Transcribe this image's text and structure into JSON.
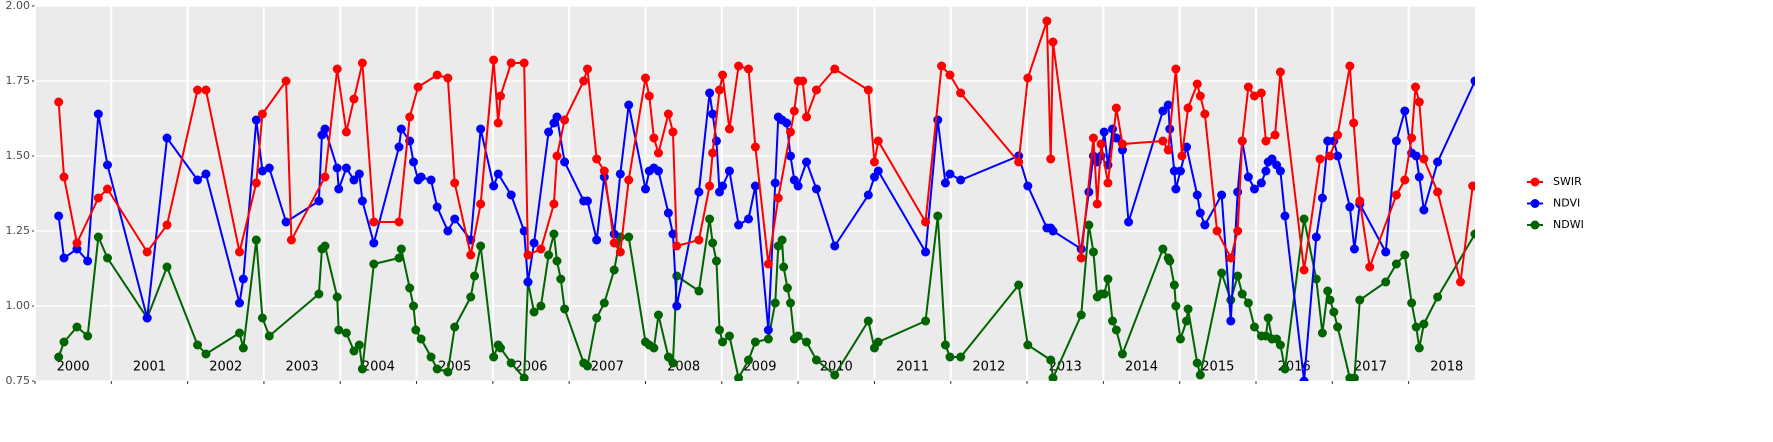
{
  "chart_data": {
    "type": "line",
    "legend": "right",
    "grid": true,
    "xlim": [
      2000,
      2018.87
    ],
    "ylim": [
      0.75,
      2.0
    ],
    "xticks": [
      2000,
      2001,
      2002,
      2003,
      2004,
      2005,
      2006,
      2007,
      2008,
      2009,
      2010,
      2011,
      2012,
      2013,
      2014,
      2015,
      2016,
      2017,
      2018
    ],
    "yticks": [
      {
        "value": 0.75,
        "label": "0.75"
      },
      {
        "value": 1.0,
        "label": "1.00"
      },
      {
        "value": 1.25,
        "label": "1.25"
      },
      {
        "value": 1.5,
        "label": "1.50"
      },
      1.75,
      {
        "value": 2.0,
        "label": "2.00"
      }
    ],
    "series": [
      {
        "name": "SWIR",
        "color": "#ff0000",
        "x": [
          2000.31,
          2000.38,
          2000.55,
          2000.83,
          2000.95,
          2001.47,
          2001.73,
          2002.13,
          2002.24,
          2002.68,
          2002.9,
          2002.98,
          2003.29,
          2003.36,
          2003.8,
          2003.96,
          2004.08,
          2004.18,
          2004.29,
          2004.44,
          2004.77,
          2004.91,
          2005.02,
          2005.27,
          2005.41,
          2005.5,
          2005.71,
          2005.84,
          2006.01,
          2006.07,
          2006.1,
          2006.24,
          2006.41,
          2006.46,
          2006.63,
          2006.8,
          2006.84,
          2006.94,
          2007.19,
          2007.24,
          2007.36,
          2007.46,
          2007.59,
          2007.67,
          2007.78,
          2008.0,
          2008.05,
          2008.11,
          2008.17,
          2008.3,
          2008.36,
          2008.41,
          2008.7,
          2008.84,
          2008.88,
          2008.97,
          2009.01,
          2009.1,
          2009.22,
          2009.35,
          2009.44,
          2009.61,
          2009.74,
          2009.9,
          2009.95,
          2010.0,
          2010.06,
          2010.11,
          2010.24,
          2010.48,
          2010.92,
          2011.0,
          2011.05,
          2011.67,
          2011.88,
          2011.99,
          2012.13,
          2012.89,
          2013.01,
          2013.26,
          2013.31,
          2013.34,
          2013.71,
          2013.87,
          2013.92,
          2013.97,
          2014.06,
          2014.17,
          2014.25,
          2014.78,
          2014.85,
          2014.95,
          2015.03,
          2015.11,
          2015.23,
          2015.27,
          2015.33,
          2015.49,
          2015.67,
          2015.76,
          2015.82,
          2015.9,
          2015.98,
          2016.07,
          2016.13,
          2016.25,
          2016.32,
          2016.63,
          2016.84,
          2016.97,
          2017.07,
          2017.23,
          2017.28,
          2017.36,
          2017.49,
          2017.84,
          2017.95,
          2018.04,
          2018.09,
          2018.14,
          2018.2,
          2018.38,
          2018.68,
          2018.84
        ],
        "values": [
          1.68,
          1.43,
          1.21,
          1.36,
          1.39,
          1.18,
          1.27,
          1.72,
          1.72,
          1.18,
          1.41,
          1.64,
          1.75,
          1.22,
          1.43,
          1.79,
          1.58,
          1.69,
          1.81,
          1.28,
          1.28,
          1.63,
          1.73,
          1.77,
          1.76,
          1.41,
          1.17,
          1.34,
          1.82,
          1.61,
          1.7,
          1.81,
          1.81,
          1.17,
          1.19,
          1.34,
          1.5,
          1.62,
          1.75,
          1.79,
          1.49,
          1.45,
          1.21,
          1.18,
          1.42,
          1.76,
          1.7,
          1.56,
          1.51,
          1.64,
          1.58,
          1.2,
          1.22,
          1.4,
          1.51,
          1.72,
          1.77,
          1.59,
          1.8,
          1.79,
          1.53,
          1.14,
          1.36,
          1.58,
          1.65,
          1.75,
          1.75,
          1.63,
          1.72,
          1.79,
          1.72,
          1.48,
          1.55,
          1.28,
          1.8,
          1.77,
          1.71,
          1.48,
          1.76,
          1.95,
          1.49,
          1.88,
          1.16,
          1.56,
          1.34,
          1.54,
          1.41,
          1.66,
          1.54,
          1.55,
          1.52,
          1.79,
          1.5,
          1.66,
          1.74,
          1.7,
          1.64,
          1.25,
          1.16,
          1.25,
          1.55,
          1.73,
          1.7,
          1.71,
          1.55,
          1.57,
          1.78,
          1.12,
          1.49,
          1.5,
          1.57,
          1.8,
          1.61,
          1.35,
          1.13,
          1.37,
          1.42,
          1.56,
          1.73,
          1.68,
          1.49,
          1.38,
          1.08,
          1.4
        ]
      },
      {
        "name": "NDVI",
        "color": "#0000ff",
        "x": [
          2000.31,
          2000.38,
          2000.55,
          2000.69,
          2000.83,
          2000.95,
          2001.47,
          2001.73,
          2002.13,
          2002.24,
          2002.68,
          2002.73,
          2002.9,
          2002.98,
          2003.07,
          2003.29,
          2003.72,
          2003.76,
          2003.8,
          2003.96,
          2003.98,
          2004.08,
          2004.18,
          2004.25,
          2004.29,
          2004.44,
          2004.77,
          2004.8,
          2004.91,
          2004.96,
          2005.02,
          2005.06,
          2005.19,
          2005.27,
          2005.41,
          2005.5,
          2005.71,
          2005.84,
          2006.01,
          2006.07,
          2006.24,
          2006.41,
          2006.46,
          2006.54,
          2006.73,
          2006.8,
          2006.84,
          2006.94,
          2007.19,
          2007.24,
          2007.36,
          2007.46,
          2007.59,
          2007.67,
          2007.78,
          2008.0,
          2008.05,
          2008.11,
          2008.17,
          2008.3,
          2008.36,
          2008.41,
          2008.7,
          2008.84,
          2008.88,
          2008.93,
          2008.97,
          2009.01,
          2009.1,
          2009.22,
          2009.35,
          2009.44,
          2009.61,
          2009.7,
          2009.74,
          2009.79,
          2009.85,
          2009.9,
          2009.95,
          2010.0,
          2010.11,
          2010.24,
          2010.48,
          2010.92,
          2011.0,
          2011.05,
          2011.67,
          2011.83,
          2011.93,
          2011.99,
          2012.13,
          2012.89,
          2013.01,
          2013.26,
          2013.31,
          2013.34,
          2013.71,
          2013.81,
          2013.87,
          2013.92,
          2013.97,
          2014.01,
          2014.06,
          2014.12,
          2014.17,
          2014.25,
          2014.33,
          2014.78,
          2014.85,
          2014.87,
          2014.93,
          2014.95,
          2015.01,
          2015.09,
          2015.23,
          2015.27,
          2015.33,
          2015.55,
          2015.67,
          2015.76,
          2015.82,
          2015.9,
          2015.98,
          2016.07,
          2016.13,
          2016.16,
          2016.21,
          2016.27,
          2016.32,
          2016.38,
          2016.63,
          2016.79,
          2016.87,
          2016.94,
          2017.02,
          2017.07,
          2017.23,
          2017.29,
          2017.36,
          2017.7,
          2017.84,
          2017.95,
          2018.04,
          2018.1,
          2018.14,
          2018.2,
          2018.38,
          2018.87
        ],
        "values": [
          1.3,
          1.16,
          1.19,
          1.15,
          1.64,
          1.47,
          0.96,
          1.56,
          1.42,
          1.44,
          1.01,
          1.09,
          1.62,
          1.45,
          1.46,
          1.28,
          1.35,
          1.57,
          1.59,
          1.46,
          1.39,
          1.46,
          1.42,
          1.44,
          1.35,
          1.21,
          1.53,
          1.59,
          1.55,
          1.48,
          1.42,
          1.43,
          1.42,
          1.33,
          1.25,
          1.29,
          1.22,
          1.59,
          1.4,
          1.44,
          1.37,
          1.25,
          1.08,
          1.21,
          1.58,
          1.61,
          1.63,
          1.48,
          1.35,
          1.35,
          1.22,
          1.43,
          1.24,
          1.44,
          1.67,
          1.39,
          1.45,
          1.46,
          1.45,
          1.31,
          1.24,
          1.0,
          1.38,
          1.71,
          1.64,
          1.55,
          1.38,
          1.4,
          1.45,
          1.27,
          1.29,
          1.4,
          0.92,
          1.41,
          1.63,
          1.62,
          1.61,
          1.5,
          1.42,
          1.4,
          1.48,
          1.39,
          1.2,
          1.37,
          1.43,
          1.45,
          1.18,
          1.62,
          1.41,
          1.44,
          1.42,
          1.5,
          1.4,
          1.26,
          1.26,
          1.25,
          1.19,
          1.38,
          1.5,
          1.48,
          1.5,
          1.58,
          1.47,
          1.59,
          1.56,
          1.52,
          1.28,
          1.65,
          1.67,
          1.59,
          1.45,
          1.39,
          1.45,
          1.53,
          1.37,
          1.31,
          1.27,
          1.37,
          0.95,
          1.38,
          1.55,
          1.43,
          1.39,
          1.41,
          1.45,
          1.48,
          1.49,
          1.47,
          1.45,
          1.3,
          0.75,
          1.23,
          1.36,
          1.55,
          1.55,
          1.5,
          1.33,
          1.19,
          1.34,
          1.18,
          1.55,
          1.65,
          1.51,
          1.5,
          1.43,
          1.32,
          1.48,
          1.75
        ]
      },
      {
        "name": "NDWI",
        "color": "#006400",
        "x": [
          2000.31,
          2000.38,
          2000.55,
          2000.69,
          2000.83,
          2000.95,
          2001.47,
          2001.73,
          2002.13,
          2002.24,
          2002.68,
          2002.73,
          2002.9,
          2002.98,
          2003.07,
          2003.72,
          2003.76,
          2003.8,
          2003.96,
          2003.98,
          2004.08,
          2004.18,
          2004.25,
          2004.29,
          2004.44,
          2004.77,
          2004.8,
          2004.91,
          2004.96,
          2004.99,
          2005.06,
          2005.19,
          2005.27,
          2005.41,
          2005.5,
          2005.71,
          2005.76,
          2005.84,
          2006.01,
          2006.07,
          2006.1,
          2006.24,
          2006.41,
          2006.46,
          2006.54,
          2006.63,
          2006.73,
          2006.8,
          2006.84,
          2006.89,
          2006.94,
          2007.19,
          2007.24,
          2007.36,
          2007.46,
          2007.59,
          2007.67,
          2007.78,
          2008.0,
          2008.05,
          2008.11,
          2008.17,
          2008.3,
          2008.36,
          2008.41,
          2008.7,
          2008.84,
          2008.88,
          2008.93,
          2008.97,
          2009.01,
          2009.1,
          2009.22,
          2009.35,
          2009.44,
          2009.61,
          2009.7,
          2009.74,
          2009.79,
          2009.81,
          2009.86,
          2009.9,
          2009.95,
          2010.0,
          2010.11,
          2010.24,
          2010.48,
          2010.92,
          2011.0,
          2011.05,
          2011.67,
          2011.83,
          2011.93,
          2011.99,
          2012.13,
          2012.89,
          2013.01,
          2013.31,
          2013.34,
          2013.71,
          2013.81,
          2013.87,
          2013.92,
          2013.97,
          2014.01,
          2014.06,
          2014.12,
          2014.17,
          2014.25,
          2014.78,
          2014.85,
          2014.87,
          2014.93,
          2014.95,
          2015.01,
          2015.09,
          2015.11,
          2015.23,
          2015.27,
          2015.55,
          2015.67,
          2015.76,
          2015.82,
          2015.9,
          2015.98,
          2016.07,
          2016.13,
          2016.16,
          2016.21,
          2016.27,
          2016.32,
          2016.38,
          2016.63,
          2016.79,
          2016.87,
          2016.94,
          2016.97,
          2017.02,
          2017.07,
          2017.23,
          2017.29,
          2017.36,
          2017.7,
          2017.84,
          2017.95,
          2018.04,
          2018.1,
          2018.14,
          2018.2,
          2018.38,
          2018.87
        ],
        "values": [
          0.83,
          0.88,
          0.93,
          0.9,
          1.23,
          1.16,
          0.96,
          1.13,
          0.87,
          0.84,
          0.91,
          0.86,
          1.22,
          0.96,
          0.9,
          1.04,
          1.19,
          1.2,
          1.03,
          0.92,
          0.91,
          0.85,
          0.87,
          0.79,
          1.14,
          1.16,
          1.19,
          1.06,
          1.0,
          0.92,
          0.89,
          0.83,
          0.79,
          0.78,
          0.93,
          1.03,
          1.1,
          1.2,
          0.83,
          0.87,
          0.86,
          0.81,
          0.76,
          1.08,
          0.98,
          1.0,
          1.17,
          1.24,
          1.15,
          1.09,
          0.99,
          0.81,
          0.8,
          0.96,
          1.01,
          1.12,
          1.23,
          1.23,
          0.88,
          0.87,
          0.86,
          0.97,
          0.83,
          0.81,
          1.1,
          1.05,
          1.29,
          1.21,
          1.15,
          0.92,
          0.88,
          0.9,
          0.76,
          0.82,
          0.88,
          0.89,
          1.01,
          1.2,
          1.22,
          1.13,
          1.06,
          1.01,
          0.89,
          0.9,
          0.88,
          0.82,
          0.77,
          0.95,
          0.86,
          0.88,
          0.95,
          1.3,
          0.87,
          0.83,
          0.83,
          1.07,
          0.87,
          0.82,
          0.76,
          0.97,
          1.27,
          1.18,
          1.03,
          1.04,
          1.04,
          1.09,
          0.95,
          0.92,
          0.84,
          1.19,
          1.16,
          1.15,
          1.07,
          1.0,
          0.89,
          0.95,
          0.99,
          0.81,
          0.77,
          1.11,
          1.02,
          1.1,
          1.04,
          1.01,
          0.93,
          0.9,
          0.9,
          0.96,
          0.89,
          0.89,
          0.87,
          0.79,
          1.29,
          1.09,
          0.91,
          1.05,
          1.02,
          0.98,
          0.93,
          0.76,
          0.76,
          1.02,
          1.08,
          1.14,
          1.17,
          1.01,
          0.93,
          0.86,
          0.94,
          1.03,
          1.24
        ]
      }
    ]
  }
}
